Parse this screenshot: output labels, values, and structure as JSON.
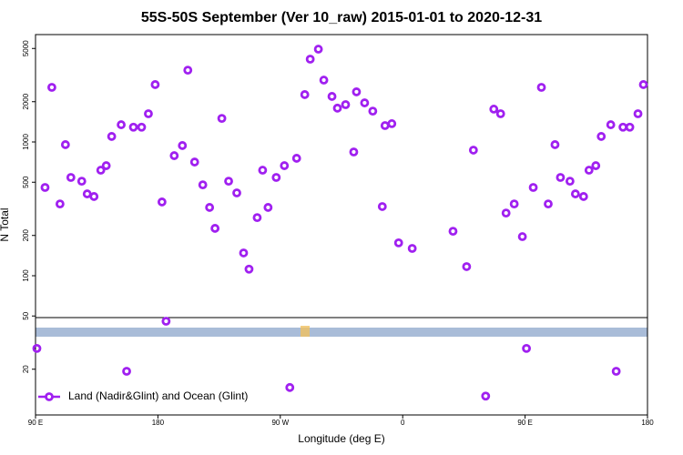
{
  "chart_data": {
    "type": "scatter",
    "title": "55S-50S September (Ver 10_raw)   2015-01-01 to 2020-12-31",
    "x_label": "Longitude (deg E)",
    "y_label": "N Total",
    "log_y": true,
    "xlim": [
      90,
      540
    ],
    "ylim": [
      9.1,
      6350
    ],
    "xticks": [
      {
        "value": 90,
        "label": "90 E"
      },
      180,
      {
        "value": 270,
        "label": "90 W"
      },
      {
        "value": 360,
        "label": "0"
      },
      {
        "value": 450,
        "label": "90 E"
      },
      {
        "value": 540,
        "label": "180"
      }
    ],
    "yticks": [
      20,
      50,
      100,
      200,
      500,
      1000,
      2000,
      5000
    ],
    "legend_position": "lower-left",
    "series": [
      {
        "name": "Land (Nadir&Glint) and Ocean (Glint)",
        "color": "#a020f0",
        "x": [
          91,
          97,
          102,
          108,
          112,
          116,
          124,
          128,
          133,
          138,
          142,
          146,
          153,
          157,
          162,
          168,
          173,
          178,
          183,
          186,
          192,
          198,
          202,
          207,
          213,
          218,
          222,
          227,
          232,
          238,
          243,
          247,
          253,
          257,
          261,
          267,
          273,
          277,
          282,
          288,
          292,
          298,
          302,
          308,
          312,
          318,
          324,
          326,
          332,
          338,
          345,
          347,
          352,
          357,
          367,
          397,
          407,
          412,
          421,
          427,
          432,
          436,
          442,
          448,
          451,
          456,
          462,
          467,
          472,
          476,
          483,
          487,
          493,
          497,
          502,
          506,
          513,
          517,
          522,
          527,
          533,
          537
        ],
        "y": [
          28.6,
          457,
          2560,
          344,
          955,
          543,
          509,
          409,
          391,
          615,
          665,
          1100,
          1345,
          19.3,
          1290,
          1290,
          1625,
          2685,
          356,
          45.7,
          790,
          940,
          3440,
          708,
          478,
          324,
          226,
          1500,
          509,
          416,
          148,
          112,
          272,
          615,
          324,
          543,
          665,
          14.6,
          755,
          2260,
          4160,
          4940,
          2900,
          2190,
          1790,
          1900,
          842,
          2370,
          1960,
          1700,
          329,
          1325,
          1370,
          176,
          160,
          215,
          117,
          869,
          12.6,
          1760,
          1625,
          294,
          344,
          196,
          28.6,
          457,
          2560,
          344,
          955,
          543,
          509,
          409,
          391,
          615,
          665,
          1100,
          1345,
          19.3,
          1290,
          1290,
          1625,
          2685
        ]
      }
    ]
  }
}
